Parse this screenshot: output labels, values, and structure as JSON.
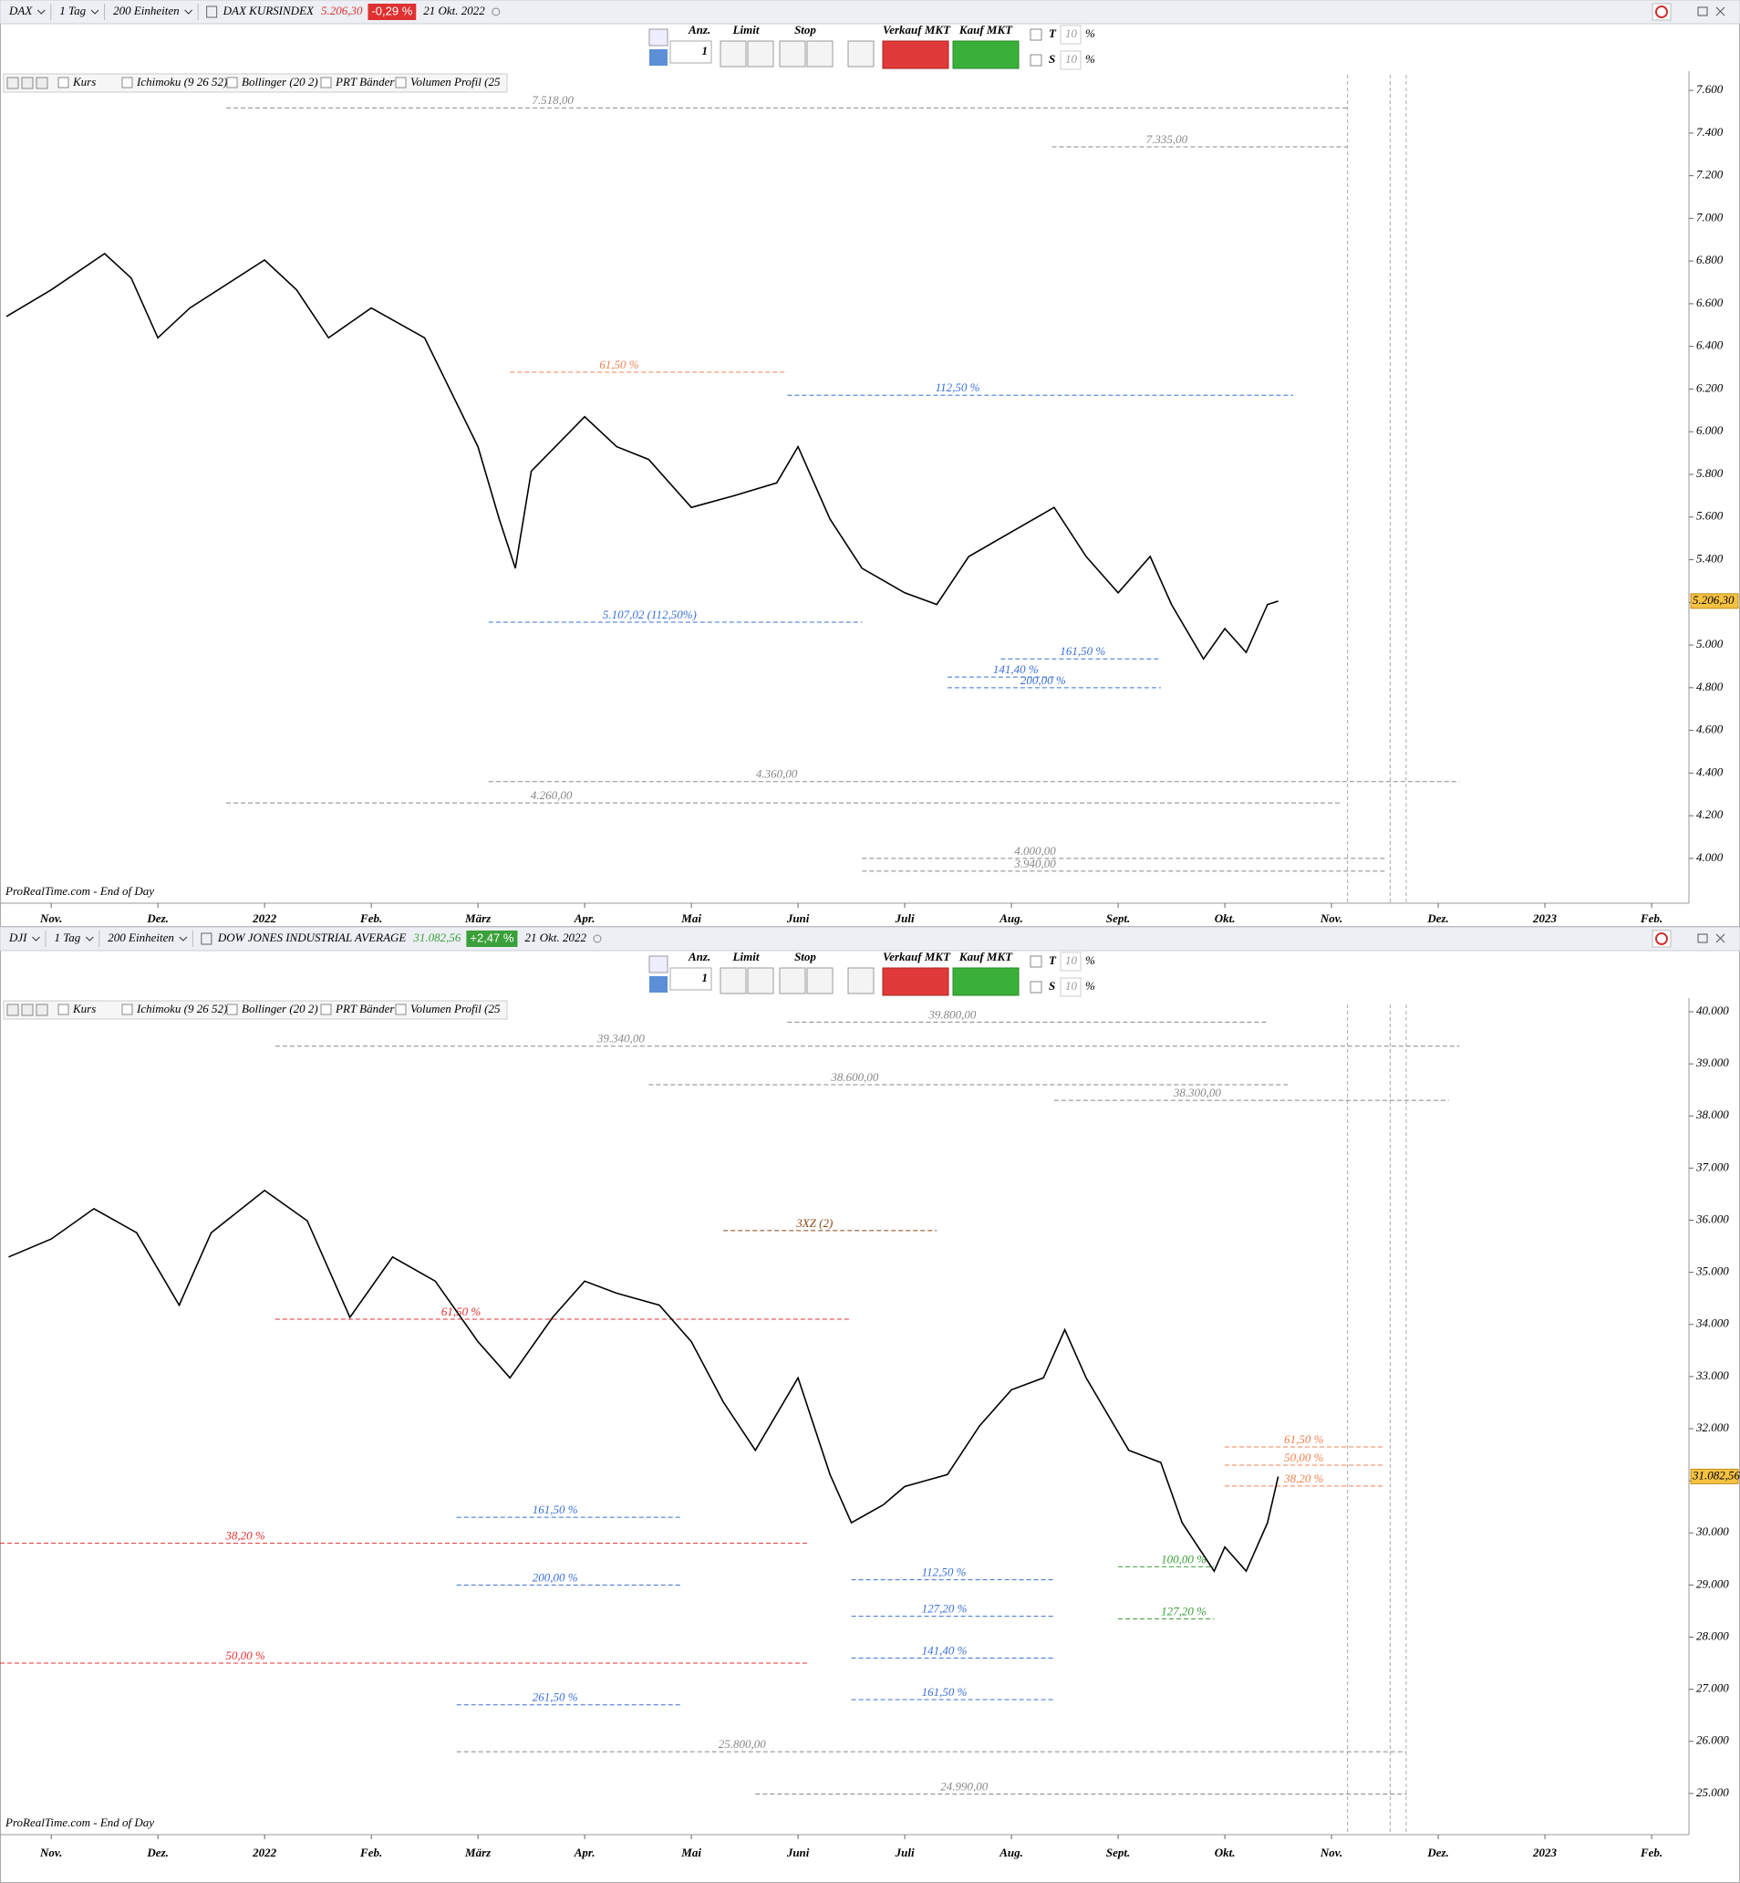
{
  "chart_data": [
    {
      "type": "line",
      "header": {
        "symbol": "DAX",
        "timeframe": "1 Tag",
        "quantity": "200 Einheiten",
        "name": "DAX KURSINDEX",
        "price": "5.206,30",
        "change": "-0,29 %",
        "change_color": "#e03030",
        "date": "21 Okt. 2022"
      },
      "toolbar": {
        "qty_label": "Anz.",
        "qty": "1",
        "limit": "Limit",
        "stop": "Stop",
        "sell": "Verkauf MKT",
        "buy": "Kauf MKT",
        "t": "T",
        "s": "S",
        "pct_value": "10",
        "pct": "%"
      },
      "indicators": [
        "Kurs",
        "Ichimoku (9 26 52)",
        "Bollinger (20 2)",
        "PRT Bänder",
        "Volumen Profil (25"
      ],
      "footer": "ProRealTime.com - End of Day",
      "xlim": [
        -0.48,
        15.35
      ],
      "xticks": [
        {
          "value": 0,
          "label": "Nov."
        },
        {
          "value": 1,
          "label": "Dez."
        },
        {
          "value": 2,
          "label": "2022"
        },
        {
          "value": 3,
          "label": "Feb."
        },
        {
          "value": 4,
          "label": "März"
        },
        {
          "value": 5,
          "label": "Apr."
        },
        {
          "value": 6,
          "label": "Mai"
        },
        {
          "value": 7,
          "label": "Juni"
        },
        {
          "value": 8,
          "label": "Juli"
        },
        {
          "value": 9,
          "label": "Aug."
        },
        {
          "value": 10,
          "label": "Sept."
        },
        {
          "value": 11,
          "label": "Okt."
        },
        {
          "value": 12,
          "label": "Nov."
        },
        {
          "value": 13,
          "label": "Dez."
        },
        {
          "value": 14,
          "label": "2023"
        },
        {
          "value": 15,
          "label": "Feb."
        }
      ],
      "ylim": [
        3790,
        7673
      ],
      "yticks": [
        {
          "value": 4000,
          "label": "4.000"
        },
        {
          "value": 4200,
          "label": "4.200"
        },
        {
          "value": 4400,
          "label": "4.400"
        },
        {
          "value": 4600,
          "label": "4.600"
        },
        {
          "value": 4800,
          "label": "4.800"
        },
        {
          "value": 5000,
          "label": "5.000"
        },
        {
          "value": 5200,
          "label": "5.200"
        },
        {
          "value": 5400,
          "label": "5.400"
        },
        {
          "value": 5600,
          "label": "5.600"
        },
        {
          "value": 5800,
          "label": "5.800"
        },
        {
          "value": 6000,
          "label": "6.000"
        },
        {
          "value": 6200,
          "label": "6.200"
        },
        {
          "value": 6400,
          "label": "6.400"
        },
        {
          "value": 6600,
          "label": "6.600"
        },
        {
          "value": 6800,
          "label": "6.800"
        },
        {
          "value": 7000,
          "label": "7.000"
        },
        {
          "value": 7200,
          "label": "7.200"
        },
        {
          "value": 7400,
          "label": "7.400"
        },
        {
          "value": 7600,
          "label": "7.600"
        }
      ],
      "last": {
        "value": 5206.3,
        "label": "5.206,30"
      },
      "series": [
        {
          "color": "#000000",
          "x": [
            -0.42,
            0,
            0.5,
            0.75,
            1,
            1.3,
            2,
            2.3,
            2.6,
            3,
            3.5,
            4,
            4.2,
            4.35,
            4.5,
            5,
            5.3,
            5.6,
            6,
            6.4,
            6.8,
            7,
            7.3,
            7.6,
            8,
            8.3,
            8.6,
            9,
            9.4,
            9.7,
            10,
            10.3,
            10.5,
            10.8,
            11,
            11.2,
            11.4,
            11.5
          ],
          "values": [
            6540,
            6665,
            6835,
            6720,
            6440,
            6580,
            6805,
            6665,
            6440,
            6580,
            6440,
            5930,
            5590,
            5360,
            5815,
            6070,
            5930,
            5870,
            5645,
            5700,
            5760,
            5930,
            5590,
            5360,
            5245,
            5190,
            5415,
            5530,
            5645,
            5415,
            5245,
            5415,
            5190,
            4935,
            5077,
            4965,
            5190,
            5206
          ]
        }
      ],
      "annotations": [
        {
          "text": "7.518,00",
          "x": 1.64,
          "x2": 12.15,
          "y": 7518,
          "color": "#888888"
        },
        {
          "text": "7.335,00",
          "x": 9.38,
          "x2": 12.15,
          "y": 7335,
          "color": "#888888"
        },
        {
          "text": "112,50 %",
          "x": 6.9,
          "x2": 11.64,
          "y": 6171,
          "color": "#3a6fd8"
        },
        {
          "text": "61,50 %",
          "x": 4.3,
          "x2": 6.9,
          "y": 6279,
          "color": "#f08050"
        },
        {
          "text": "5.107,02 (112,50%)",
          "x": 4.1,
          "x2": 7.6,
          "y": 5107,
          "color": "#3a6fd8"
        },
        {
          "text": "161,50 %",
          "x": 8.9,
          "x2": 10.4,
          "y": 4935,
          "color": "#3a6fd8"
        },
        {
          "text": "141,40 %",
          "x": 8.4,
          "x2": 9.4,
          "y": 4850,
          "color": "#3a6fd8"
        },
        {
          "text": "200,00 %",
          "x": 8.4,
          "x2": 10.4,
          "y": 4800,
          "color": "#3a6fd8"
        },
        {
          "text": "4.360,00",
          "x": 4.1,
          "x2": 13.2,
          "y": 4360,
          "color": "#888888"
        },
        {
          "text": "4.260,00",
          "x": 1.64,
          "x2": 12.1,
          "y": 4260,
          "color": "#888888"
        },
        {
          "text": "4.000,00",
          "x": 7.6,
          "x2": 12.5,
          "y": 4000,
          "color": "#888888"
        },
        {
          "text": "3.940,00",
          "x": 7.6,
          "x2": 12.5,
          "y": 3940,
          "color": "#888888"
        }
      ]
    },
    {
      "type": "line",
      "header": {
        "symbol": "DJI",
        "timeframe": "1 Tag",
        "quantity": "200 Einheiten",
        "name": "DOW JONES INDUSTRIAL AVERAGE",
        "price": "31.082,56",
        "change": "+2,47 %",
        "change_color": "#3aa03a",
        "date": "21 Okt. 2022"
      },
      "toolbar": {
        "qty_label": "Anz.",
        "qty": "1",
        "limit": "Limit",
        "stop": "Stop",
        "sell": "Verkauf MKT",
        "buy": "Kauf MKT",
        "t": "T",
        "s": "S",
        "pct_value": "10",
        "pct": "%"
      },
      "indicators": [
        "Kurs",
        "Ichimoku (9 26 52)",
        "Bollinger (20 2)",
        "PRT Bänder",
        "Volumen Profil (25"
      ],
      "footer": "ProRealTime.com - End of Day",
      "xlim": [
        -0.48,
        15.35
      ],
      "xticks": [
        {
          "value": 0,
          "label": "Nov."
        },
        {
          "value": 1,
          "label": "Dez."
        },
        {
          "value": 2,
          "label": "2022"
        },
        {
          "value": 3,
          "label": "Feb."
        },
        {
          "value": 4,
          "label": "März"
        },
        {
          "value": 5,
          "label": "Apr."
        },
        {
          "value": 6,
          "label": "Mai"
        },
        {
          "value": 7,
          "label": "Juni"
        },
        {
          "value": 8,
          "label": "Juli"
        },
        {
          "value": 9,
          "label": "Aug."
        },
        {
          "value": 10,
          "label": "Sept."
        },
        {
          "value": 11,
          "label": "Okt."
        },
        {
          "value": 12,
          "label": "Nov."
        },
        {
          "value": 13,
          "label": "Dez."
        },
        {
          "value": 14,
          "label": "2023"
        },
        {
          "value": 15,
          "label": "Feb."
        }
      ],
      "ylim": [
        24210,
        40140
      ],
      "yticks": [
        {
          "value": 25000,
          "label": "25.000"
        },
        {
          "value": 26000,
          "label": "26.000"
        },
        {
          "value": 27000,
          "label": "27.000"
        },
        {
          "value": 28000,
          "label": "28.000"
        },
        {
          "value": 29000,
          "label": "29.000"
        },
        {
          "value": 30000,
          "label": "30.000"
        },
        {
          "value": 31000,
          "label": "31.000"
        },
        {
          "value": 32000,
          "label": "32.000"
        },
        {
          "value": 33000,
          "label": "33.000"
        },
        {
          "value": 34000,
          "label": "34.000"
        },
        {
          "value": 35000,
          "label": "35.000"
        },
        {
          "value": 36000,
          "label": "36.000"
        },
        {
          "value": 37000,
          "label": "37.000"
        },
        {
          "value": 38000,
          "label": "38.000"
        },
        {
          "value": 39000,
          "label": "39.000"
        },
        {
          "value": 40000,
          "label": "40.000"
        }
      ],
      "last": {
        "value": 31082.56,
        "label": "31.082,56"
      },
      "series": [
        {
          "color": "#000000",
          "x": [
            -0.4,
            0,
            0.4,
            0.8,
            1.2,
            1.5,
            2,
            2.4,
            2.8,
            3.2,
            3.6,
            4,
            4.3,
            4.7,
            5,
            5.3,
            5.7,
            6,
            6.3,
            6.6,
            7,
            7.3,
            7.5,
            7.8,
            8,
            8.4,
            8.7,
            9,
            9.3,
            9.5,
            9.7,
            9.9,
            10.1,
            10.4,
            10.6,
            10.9,
            11,
            11.2,
            11.4,
            11.5
          ],
          "values": [
            35295,
            35640,
            36220,
            35760,
            34370,
            35760,
            36570,
            35990,
            34135,
            35295,
            34830,
            33670,
            32975,
            34135,
            34830,
            34600,
            34370,
            33670,
            32510,
            31585,
            32975,
            31120,
            30195,
            30540,
            30890,
            31120,
            32050,
            32745,
            32975,
            33900,
            32975,
            32280,
            31585,
            31350,
            30195,
            29265,
            29730,
            29265,
            30195,
            31082
          ]
        }
      ],
      "annotations": [
        {
          "text": "39.340,00",
          "x": 2.1,
          "x2": 13.2,
          "y": 39340,
          "color": "#888888"
        },
        {
          "text": "39.800,00",
          "x": 6.9,
          "x2": 11.4,
          "y": 39800,
          "color": "#888888"
        },
        {
          "text": "38.600,00",
          "x": 5.6,
          "x2": 11.6,
          "y": 38600,
          "color": "#888888"
        },
        {
          "text": "38.300,00",
          "x": 9.4,
          "x2": 13.1,
          "y": 38300,
          "color": "#888888"
        },
        {
          "text": "3XZ (2)",
          "x": 6.3,
          "x2": 8.3,
          "y": 35800,
          "color": "#8b4513"
        },
        {
          "text": "61,50 %",
          "x": 2.1,
          "x2": 7.5,
          "y": 34100,
          "color": "#e03030"
        },
        {
          "text": "61,50 %",
          "x": 11.0,
          "x2": 12.5,
          "y": 31650,
          "color": "#f08050"
        },
        {
          "text": "50,00 %",
          "x": 11.0,
          "x2": 12.5,
          "y": 31300,
          "color": "#f08050"
        },
        {
          "text": "38,20 %",
          "x": 11.0,
          "x2": 12.5,
          "y": 30900,
          "color": "#f08050"
        },
        {
          "text": "161,50 %",
          "x": 3.8,
          "x2": 5.9,
          "y": 30300,
          "color": "#3a6fd8"
        },
        {
          "text": "38,20 %",
          "x": -0.48,
          "x2": 7.1,
          "y": 29800,
          "color": "#e03030"
        },
        {
          "text": "100,00 %",
          "x": 10.0,
          "x2": 10.9,
          "y": 29350,
          "color": "#3aa03a"
        },
        {
          "text": "112,50 %",
          "x": 7.5,
          "x2": 9.4,
          "y": 29100,
          "color": "#3a6fd8"
        },
        {
          "text": "200,00 %",
          "x": 3.8,
          "x2": 5.9,
          "y": 29000,
          "color": "#3a6fd8"
        },
        {
          "text": "127,20 %",
          "x": 7.5,
          "x2": 9.4,
          "y": 28400,
          "color": "#3a6fd8"
        },
        {
          "text": "127,20 %",
          "x": 10.0,
          "x2": 10.9,
          "y": 28350,
          "color": "#3aa03a"
        },
        {
          "text": "141,40 %",
          "x": 7.5,
          "x2": 9.4,
          "y": 27600,
          "color": "#3a6fd8"
        },
        {
          "text": "50,00 %",
          "x": -0.48,
          "x2": 7.1,
          "y": 27500,
          "color": "#e03030"
        },
        {
          "text": "161,50 %",
          "x": 7.5,
          "x2": 9.4,
          "y": 26800,
          "color": "#3a6fd8"
        },
        {
          "text": "261,50 %",
          "x": 3.8,
          "x2": 5.9,
          "y": 26700,
          "color": "#3a6fd8"
        },
        {
          "text": "25.800,00",
          "x": 3.8,
          "x2": 12.7,
          "y": 25800,
          "color": "#888888"
        },
        {
          "text": "24.990,00",
          "x": 6.6,
          "x2": 12.7,
          "y": 24990,
          "color": "#888888"
        }
      ]
    }
  ]
}
